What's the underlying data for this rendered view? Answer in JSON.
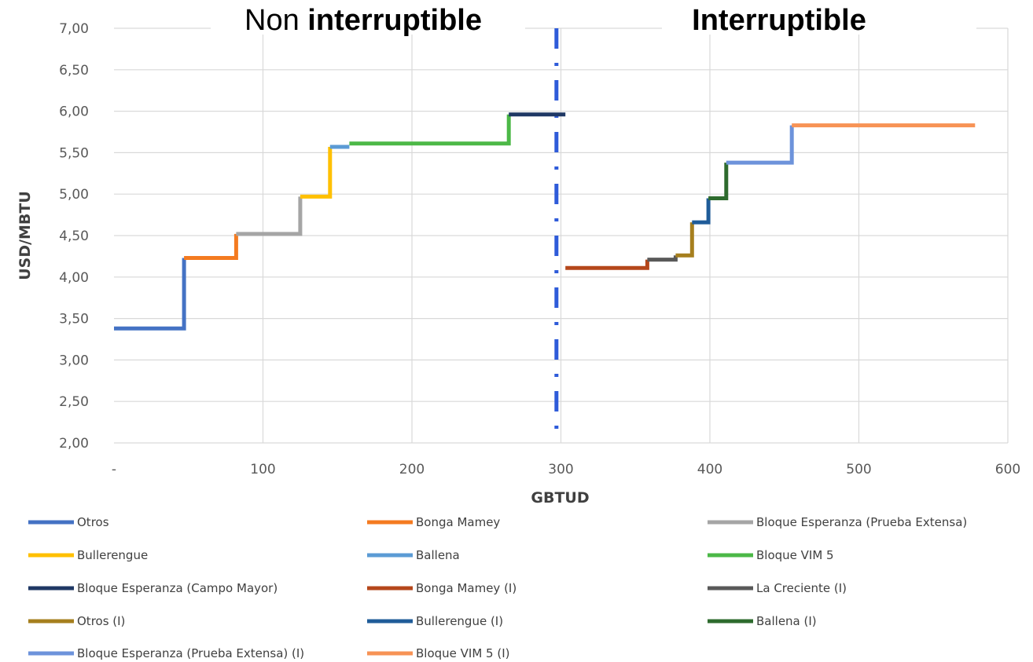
{
  "chart_data": {
    "type": "line",
    "step": true,
    "xlabel": "GBTUD",
    "ylabel": "USD/MBTU",
    "xlim": [
      0,
      600
    ],
    "ylim": [
      2.0,
      7.0
    ],
    "x_ticks": [
      0,
      100,
      200,
      300,
      400,
      500,
      600
    ],
    "x_tick_labels": [
      "-",
      "100",
      "200",
      "300",
      "400",
      "500",
      "600"
    ],
    "y_ticks": [
      2.0,
      2.5,
      3.0,
      3.5,
      4.0,
      4.5,
      5.0,
      5.5,
      6.0,
      6.5,
      7.0
    ],
    "y_tick_labels": [
      "2,00",
      "2,50",
      "3,00",
      "3,50",
      "4,00",
      "4,50",
      "5,00",
      "5,50",
      "6,00",
      "6,50",
      "7,00"
    ],
    "grid": true,
    "legend_position": "bottom",
    "regions": {
      "left": {
        "prefix": "Non ",
        "bold": "interruptible"
      },
      "right": {
        "prefix": "",
        "bold": "Interruptible"
      }
    },
    "divider_x": 297,
    "divider_color": "#2E5BD9",
    "series": [
      {
        "name": "Otros",
        "color": "#4472C4",
        "points": [
          [
            0,
            3.38
          ],
          [
            47,
            3.38
          ],
          [
            47,
            4.23
          ]
        ]
      },
      {
        "name": "Bonga Mamey",
        "color": "#F47B20",
        "points": [
          [
            47,
            4.23
          ],
          [
            82,
            4.23
          ],
          [
            82,
            4.52
          ]
        ]
      },
      {
        "name": "Bloque Esperanza (Prueba Extensa)",
        "color": "#A5A5A5",
        "points": [
          [
            82,
            4.52
          ],
          [
            125,
            4.52
          ],
          [
            125,
            4.97
          ]
        ]
      },
      {
        "name": "Bullerengue",
        "color": "#FFC000",
        "points": [
          [
            125,
            4.97
          ],
          [
            145,
            4.97
          ],
          [
            145,
            5.57
          ]
        ]
      },
      {
        "name": "Ballena",
        "color": "#5B9BD5",
        "points": [
          [
            145,
            5.57
          ],
          [
            158,
            5.57
          ]
        ]
      },
      {
        "name": "Bloque VIM 5",
        "color": "#4CB847",
        "points": [
          [
            158,
            5.61
          ],
          [
            265,
            5.61
          ],
          [
            265,
            5.96
          ]
        ]
      },
      {
        "name": "Bloque Esperanza (Campo Mayor)",
        "color": "#1F3864",
        "points": [
          [
            265,
            5.96
          ],
          [
            303,
            5.96
          ]
        ]
      },
      {
        "name": "Bonga Mamey (I)",
        "color": "#B5471B",
        "points": [
          [
            303,
            4.11
          ],
          [
            358,
            4.11
          ],
          [
            358,
            4.21
          ]
        ]
      },
      {
        "name": "La Creciente (I)",
        "color": "#595959",
        "points": [
          [
            358,
            4.21
          ],
          [
            377,
            4.21
          ],
          [
            377,
            4.26
          ]
        ]
      },
      {
        "name": "Otros (I)",
        "color": "#A67F1E",
        "points": [
          [
            377,
            4.26
          ],
          [
            388,
            4.26
          ],
          [
            388,
            4.66
          ]
        ]
      },
      {
        "name": "Bullerengue (I)",
        "color": "#1F5C99",
        "points": [
          [
            388,
            4.66
          ],
          [
            399,
            4.66
          ],
          [
            399,
            4.95
          ]
        ]
      },
      {
        "name": "Ballena (I)",
        "color": "#2E6B2E",
        "points": [
          [
            399,
            4.95
          ],
          [
            411,
            4.95
          ],
          [
            411,
            5.38
          ]
        ]
      },
      {
        "name": "Bloque Esperanza (Prueba Extensa) (I)",
        "color": "#6D93DB",
        "points": [
          [
            411,
            5.38
          ],
          [
            455,
            5.38
          ],
          [
            455,
            5.83
          ]
        ]
      },
      {
        "name": "Bloque VIM 5 (I)",
        "color": "#F79355",
        "points": [
          [
            455,
            5.83
          ],
          [
            578,
            5.83
          ]
        ]
      }
    ]
  }
}
